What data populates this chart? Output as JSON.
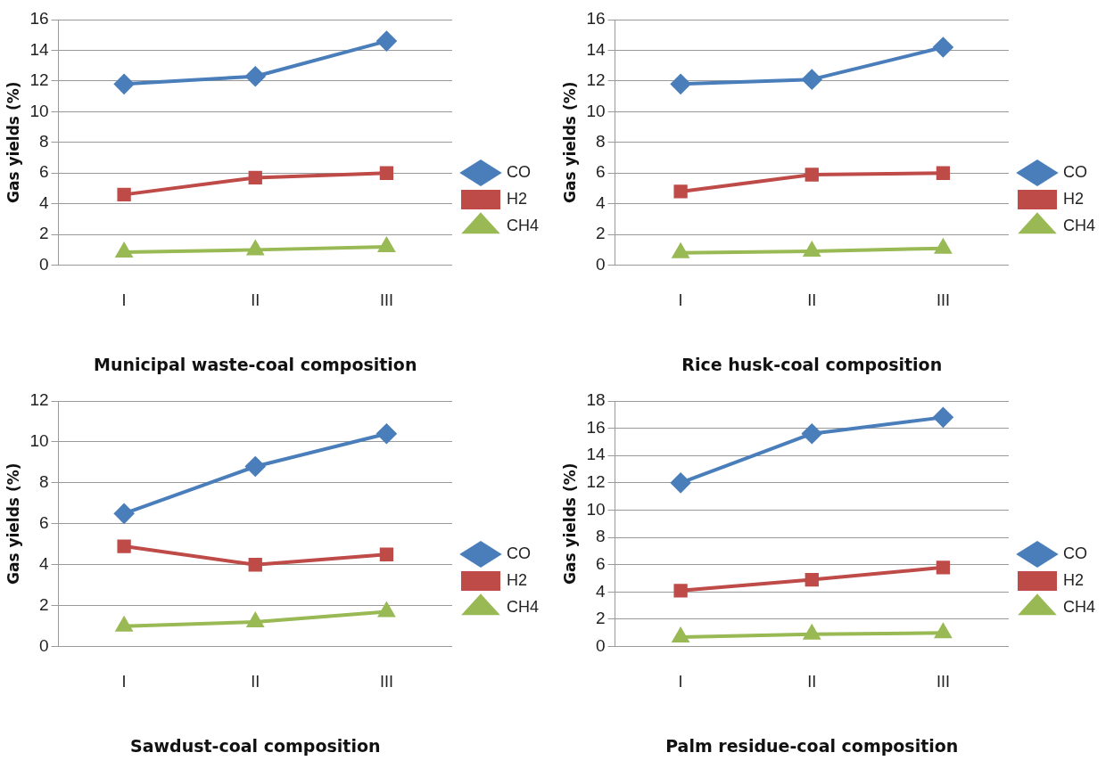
{
  "chart_data": [
    {
      "type": "line",
      "xlabel": "Municipal waste-coal composition",
      "ylabel": "Gas yields (%)",
      "categories": [
        "I",
        "II",
        "III"
      ],
      "ylim": [
        0,
        16
      ],
      "yticks": [
        0,
        2,
        4,
        6,
        8,
        10,
        12,
        14,
        16
      ],
      "grid": "y",
      "legend": "right",
      "series": [
        {
          "name": "CO",
          "color": "#4a7ebb",
          "marker": "diamond",
          "values": [
            11.8,
            12.3,
            14.6
          ]
        },
        {
          "name": "H2",
          "color": "#be4b48",
          "marker": "square",
          "values": [
            4.6,
            5.7,
            6.0
          ]
        },
        {
          "name": "CH4",
          "color": "#98b954",
          "marker": "triangle",
          "values": [
            0.85,
            1.0,
            1.2
          ]
        }
      ]
    },
    {
      "type": "line",
      "xlabel": "Rice husk-coal composition",
      "ylabel": "Gas yields (%)",
      "categories": [
        "I",
        "II",
        "III"
      ],
      "ylim": [
        0,
        16
      ],
      "yticks": [
        0,
        2,
        4,
        6,
        8,
        10,
        12,
        14,
        16
      ],
      "grid": "y",
      "legend": "right",
      "series": [
        {
          "name": "CO",
          "color": "#4a7ebb",
          "marker": "diamond",
          "values": [
            11.8,
            12.1,
            14.2
          ]
        },
        {
          "name": "H2",
          "color": "#be4b48",
          "marker": "square",
          "values": [
            4.8,
            5.9,
            6.0
          ]
        },
        {
          "name": "CH4",
          "color": "#98b954",
          "marker": "triangle",
          "values": [
            0.8,
            0.9,
            1.1
          ]
        }
      ]
    },
    {
      "type": "line",
      "xlabel": "Sawdust-coal composition",
      "ylabel": "Gas yields (%)",
      "categories": [
        "I",
        "II",
        "III"
      ],
      "ylim": [
        0,
        12
      ],
      "yticks": [
        0,
        2,
        4,
        6,
        8,
        10,
        12
      ],
      "grid": "y",
      "legend": "right",
      "series": [
        {
          "name": "CO",
          "color": "#4a7ebb",
          "marker": "diamond",
          "values": [
            6.5,
            8.8,
            10.4
          ]
        },
        {
          "name": "H2",
          "color": "#be4b48",
          "marker": "square",
          "values": [
            4.9,
            4.0,
            4.5
          ]
        },
        {
          "name": "CH4",
          "color": "#98b954",
          "marker": "triangle",
          "values": [
            1.0,
            1.2,
            1.7
          ]
        }
      ]
    },
    {
      "type": "line",
      "xlabel": "Palm residue-coal composition",
      "ylabel": "Gas yields (%)",
      "categories": [
        "I",
        "II",
        "III"
      ],
      "ylim": [
        0,
        18
      ],
      "yticks": [
        0,
        2,
        4,
        6,
        8,
        10,
        12,
        14,
        16,
        18
      ],
      "grid": "y",
      "legend": "right",
      "series": [
        {
          "name": "CO",
          "color": "#4a7ebb",
          "marker": "diamond",
          "values": [
            12.0,
            15.6,
            16.8
          ]
        },
        {
          "name": "H2",
          "color": "#be4b48",
          "marker": "square",
          "values": [
            4.1,
            4.9,
            5.8
          ]
        },
        {
          "name": "CH4",
          "color": "#98b954",
          "marker": "triangle",
          "values": [
            0.7,
            0.9,
            1.0
          ]
        }
      ]
    }
  ]
}
